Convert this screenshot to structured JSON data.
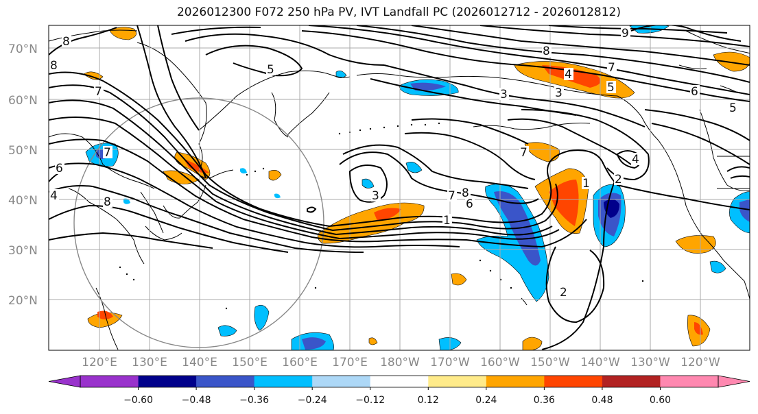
{
  "title": "2026012300 F072 250 hPa PV, IVT Landfall PC (2026012712 - 2026012812)",
  "lat_labels": [
    "70°N",
    "60°N",
    "50°N",
    "40°N",
    "30°N",
    "20°N"
  ],
  "lon_labels": [
    "120°E",
    "130°E",
    "140°E",
    "150°E",
    "160°E",
    "170°E",
    "180°W",
    "170°W",
    "160°W",
    "150°W",
    "140°W",
    "130°W",
    "120°W"
  ],
  "colorbar": {
    "colors": [
      "#9932cc",
      "#00008b",
      "#3a55c9",
      "#00bfff",
      "#add8f7",
      "#ffffff",
      "#ffeb8a",
      "#ffa500",
      "#ff4500",
      "#b22222",
      "#ff88b0"
    ],
    "tick_labels": [
      "−0.60",
      "−0.48",
      "−0.36",
      "−0.24",
      "−0.12",
      "0.12",
      "0.24",
      "0.36",
      "0.48",
      "0.60"
    ]
  },
  "contour_labels": [
    "8",
    "8",
    "7",
    "6",
    "5",
    "7",
    "8",
    "9",
    "8",
    "7",
    "6",
    "5",
    "4",
    "5",
    "3",
    "3",
    "4",
    "7",
    "8",
    "7",
    "6",
    "1",
    "4",
    "1",
    "2",
    "2",
    "3"
  ]
}
